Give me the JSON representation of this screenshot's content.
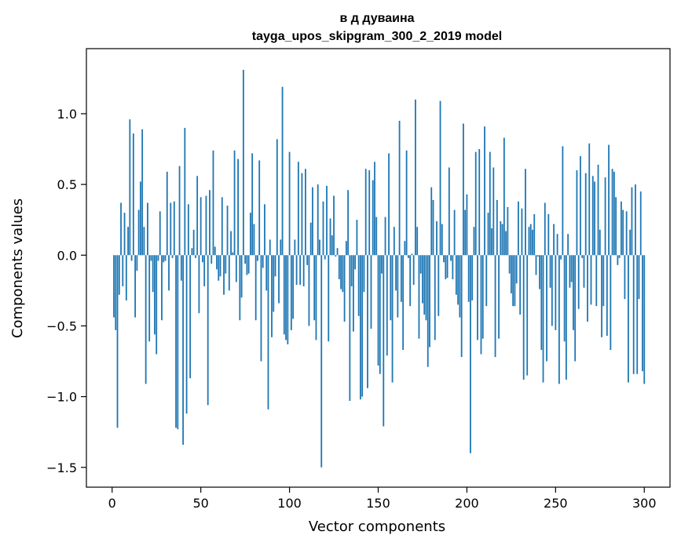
{
  "chart_data": {
    "type": "bar",
    "title": "в д дуваина",
    "subtitle": "tayga_upos_skipgram_300_2_2019 model",
    "xlabel": "Vector components",
    "ylabel": "Components values",
    "xlim": [
      -14.5,
      314.5
    ],
    "ylim": [
      -1.64,
      1.46
    ],
    "xticks": [
      0,
      50,
      100,
      150,
      200,
      250,
      300
    ],
    "xtick_labels": [
      "0",
      "50",
      "100",
      "150",
      "200",
      "250",
      "300"
    ],
    "yticks": [
      -1.5,
      -1.0,
      -0.5,
      0.0,
      0.5,
      1.0
    ],
    "ytick_labels": [
      "−1.5",
      "−1.0",
      "−0.5",
      "0.0",
      "0.5",
      "1.0"
    ],
    "grid": false,
    "bar_color": "#1f77b4",
    "x_start": 1,
    "values": [
      -0.44,
      -0.53,
      -1.22,
      -0.28,
      0.37,
      -0.22,
      0.3,
      -0.32,
      0.2,
      0.96,
      -0.04,
      0.86,
      -0.44,
      -0.11,
      0.32,
      0.52,
      0.89,
      0.2,
      -0.91,
      0.37,
      -0.61,
      -0.04,
      -0.26,
      -0.56,
      -0.7,
      -0.04,
      0.31,
      -0.46,
      -0.05,
      -0.04,
      0.59,
      -0.25,
      0.37,
      -0.02,
      0.38,
      -1.22,
      -1.23,
      0.63,
      -0.18,
      -1.34,
      0.9,
      -1.12,
      0.36,
      -0.87,
      0.05,
      0.18,
      -0.02,
      0.56,
      -0.41,
      0.41,
      -0.05,
      -0.22,
      0.42,
      -1.06,
      0.46,
      -0.06,
      0.74,
      0.06,
      -0.1,
      -0.18,
      -0.15,
      0.41,
      -0.28,
      -0.13,
      0.35,
      -0.25,
      0.17,
      0.02,
      0.74,
      -0.19,
      0.68,
      -0.46,
      -0.3,
      1.31,
      -0.06,
      -0.14,
      -0.13,
      0.3,
      0.72,
      0.22,
      -0.46,
      -0.04,
      0.67,
      -0.75,
      -0.09,
      0.36,
      -0.25,
      -1.09,
      0.11,
      -0.58,
      -0.4,
      -0.15,
      0.82,
      -0.34,
      0.11,
      1.19,
      -0.56,
      -0.6,
      -0.63,
      0.73,
      -0.53,
      -0.45,
      0.11,
      -0.21,
      0.66,
      -0.21,
      0.58,
      -0.22,
      0.61,
      -0.07,
      -0.5,
      0.23,
      0.48,
      -0.46,
      -0.6,
      0.5,
      0.11,
      -1.5,
      0.38,
      -0.03,
      0.49,
      -0.61,
      0.26,
      0.14,
      0.42,
      -0.01,
      0.05,
      -0.17,
      -0.24,
      -0.26,
      -0.47,
      0.1,
      0.46,
      -1.03,
      -0.22,
      -0.54,
      -0.1,
      0.25,
      -0.43,
      -1.02,
      -1.0,
      -0.26,
      0.61,
      -0.94,
      0.6,
      -0.52,
      0.53,
      0.66,
      0.27,
      -0.78,
      -0.84,
      -0.13,
      -1.21,
      0.27,
      -0.71,
      0.72,
      -0.46,
      -0.9,
      0.2,
      -0.25,
      -0.44,
      0.95,
      -0.33,
      -0.67,
      0.1,
      0.74,
      -0.02,
      -0.36,
      0.01,
      -0.21,
      1.1,
      0.2,
      -0.59,
      -0.13,
      -0.34,
      -0.42,
      -0.46,
      -0.79,
      -0.65,
      0.48,
      0.39,
      -0.6,
      0.24,
      -0.43,
      1.09,
      0.22,
      -0.05,
      -0.17,
      -0.16,
      0.62,
      -0.04,
      -0.17,
      0.32,
      -0.28,
      -0.35,
      -0.44,
      -0.72,
      0.93,
      0.32,
      0.43,
      -0.33,
      -1.4,
      -0.32,
      0.2,
      0.73,
      -0.6,
      0.75,
      -0.7,
      -0.59,
      0.91,
      -0.36,
      0.3,
      0.73,
      0.19,
      0.62,
      -0.72,
      0.39,
      -0.59,
      0.24,
      0.22,
      0.83,
      0.17,
      0.34,
      -0.13,
      -0.27,
      -0.36,
      -0.36,
      -0.2,
      0.38,
      -0.42,
      0.33,
      -0.88,
      0.61,
      -0.85,
      0.2,
      0.22,
      0.18,
      0.29,
      -0.14,
      -0.01,
      -0.24,
      -0.67,
      -0.9,
      0.37,
      -0.75,
      0.29,
      -0.23,
      -0.5,
      0.22,
      -0.53,
      0.15,
      -0.91,
      -0.03,
      0.77,
      -0.61,
      -0.88,
      0.15,
      -0.23,
      -0.19,
      -0.53,
      -0.75,
      0.6,
      -0.38,
      0.7,
      -0.02,
      -0.23,
      0.58,
      -0.47,
      0.79,
      -0.35,
      0.56,
      0.52,
      -0.36,
      0.64,
      0.18,
      -0.58,
      -0.36,
      0.55,
      -0.57,
      0.78,
      -0.67,
      0.61,
      0.59,
      0.41,
      -0.07,
      -0.02,
      0.38,
      0.32,
      -0.31,
      0.31,
      -0.9,
      0.18,
      0.48,
      -0.84,
      0.5,
      -0.84,
      -0.31,
      0.45,
      -0.82,
      -0.91
    ]
  }
}
